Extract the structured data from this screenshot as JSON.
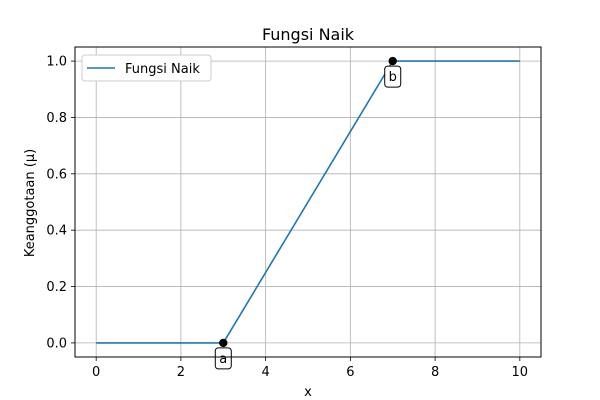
{
  "chart_data": {
    "type": "line",
    "title": "Fungsi Naik",
    "xlabel": "x",
    "ylabel": "Keanggotaan (μ)",
    "xlim": [
      -0.5,
      10.5
    ],
    "ylim": [
      -0.05,
      1.05
    ],
    "xticks": [
      0,
      2,
      4,
      6,
      8,
      10
    ],
    "yticks": [
      0.0,
      0.2,
      0.4,
      0.6,
      0.8,
      1.0
    ],
    "xtick_labels": [
      "0",
      "2",
      "4",
      "6",
      "8",
      "10"
    ],
    "ytick_labels": [
      "0.0",
      "0.2",
      "0.4",
      "0.6",
      "0.8",
      "1.0"
    ],
    "grid": true,
    "legend_position": "upper-left",
    "series": [
      {
        "name": "Fungsi Naik",
        "color": "#1f77b4",
        "x": [
          0,
          3,
          7,
          10
        ],
        "y": [
          0,
          0,
          1,
          1
        ]
      }
    ],
    "points": [
      {
        "label": "a",
        "x": 3,
        "y": 0
      },
      {
        "label": "b",
        "x": 7,
        "y": 1
      }
    ]
  }
}
